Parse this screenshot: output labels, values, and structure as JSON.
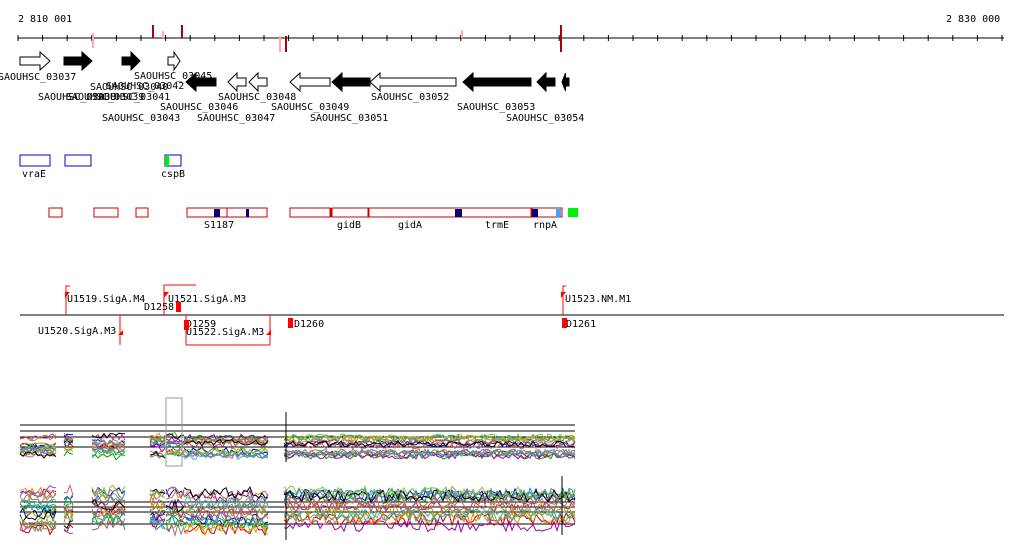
{
  "coordinates": {
    "start": "2 810 001",
    "end": "2 830 000"
  },
  "genes": [
    {
      "label": "SAOUHSC_03037"
    },
    {
      "label": "SAOUHSC_03038"
    },
    {
      "label": "SAOUHSC_03039"
    },
    {
      "label": "SAOUHSC_03040"
    },
    {
      "label": "SAOUHSC_03041"
    },
    {
      "label": "SAOUHSC_03042"
    },
    {
      "label": "SAOUHSC_03043"
    },
    {
      "label": "SAOUHSC_03045"
    },
    {
      "label": "SAOUHSC_03046"
    },
    {
      "label": "SAOUHSC_03047"
    },
    {
      "label": "SAOUHSC_03048"
    },
    {
      "label": "SAOUHSC_03049"
    },
    {
      "label": "SAOUHSC_03051"
    },
    {
      "label": "SAOUHSC_03052"
    },
    {
      "label": "SAOUHSC_03053"
    },
    {
      "label": "SAOUHSC_03054"
    }
  ],
  "blue_features": [
    {
      "label": "vraE"
    },
    {
      "label": ""
    },
    {
      "label": "cspB"
    }
  ],
  "red_features": [
    "S1187",
    "gidB",
    "gidA",
    "trmE",
    "rnpA"
  ],
  "promoters_top": [
    "U1519.SigA.M4",
    "U1521.SigA.M3",
    "U1523.NM.M1"
  ],
  "promoters_mid": [
    "D1258"
  ],
  "promoters_bottom": [
    "U1520.SigA.M3",
    "D1259",
    "U1522.SigA.M3",
    "D1260",
    "D1261"
  ],
  "colors": {
    "blue_feature": "#0000cc",
    "red_feature": "#cc0000",
    "dark_blue_block": "#000080",
    "light_blue_block": "#33aaff",
    "green_block": "#00ee00",
    "promoter_marker": "#ff0000",
    "tick_dark": "#aa0000",
    "tick_light": "#ffaaaa"
  }
}
